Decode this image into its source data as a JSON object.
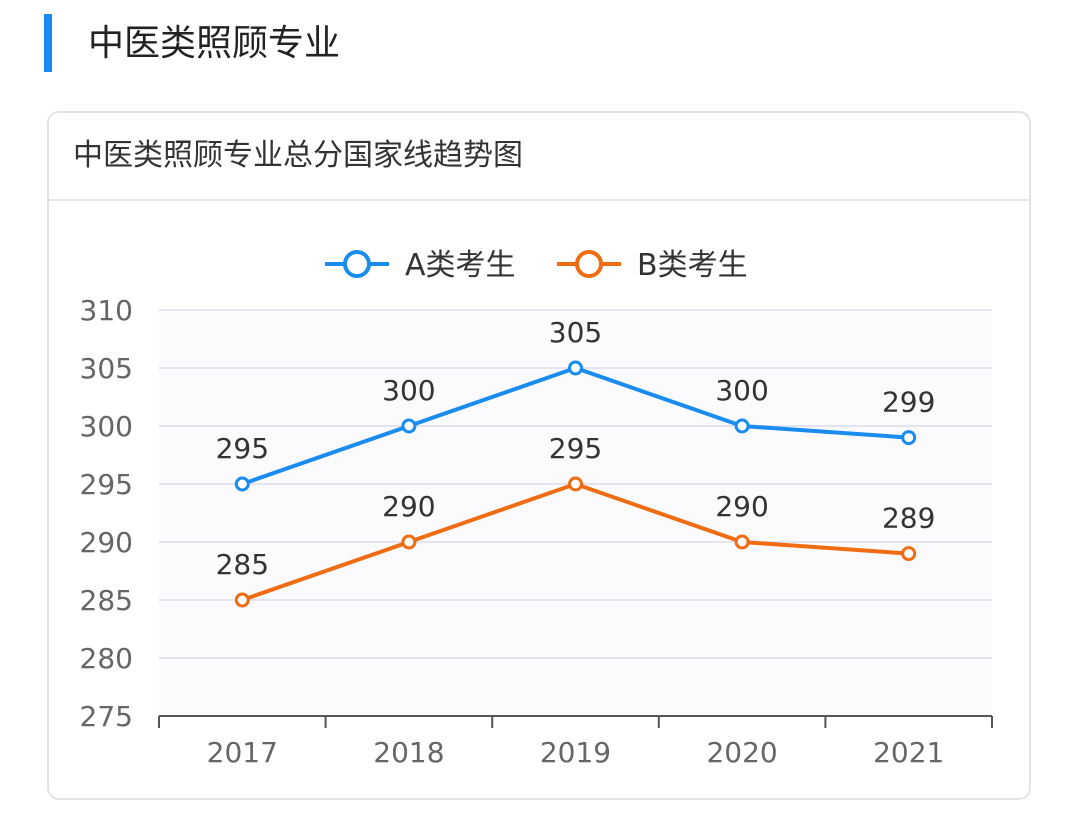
{
  "section": {
    "title": "中医类照顾专业"
  },
  "colors": {
    "accent": "#1a8cf0",
    "series_a": "#1a8cf0",
    "series_b": "#f06c12",
    "grid": "#e4e4f0",
    "axis": "#555555",
    "tick_text": "#666666",
    "label_text": "#333333"
  },
  "chart_data": {
    "type": "line",
    "title": "中医类照顾专业总分国家线趋势图",
    "xlabel": "",
    "ylabel": "",
    "categories": [
      "2017",
      "2018",
      "2019",
      "2020",
      "2021"
    ],
    "ylim": [
      275,
      310
    ],
    "yticks": [
      275,
      280,
      285,
      290,
      295,
      300,
      305,
      310
    ],
    "grid": true,
    "legend_position": "top-center",
    "series": [
      {
        "name": "A类考生",
        "color": "#1a8cf0",
        "values": [
          295,
          300,
          305,
          300,
          299
        ]
      },
      {
        "name": "B类考生",
        "color": "#f06c12",
        "values": [
          285,
          290,
          295,
          290,
          289
        ]
      }
    ]
  }
}
